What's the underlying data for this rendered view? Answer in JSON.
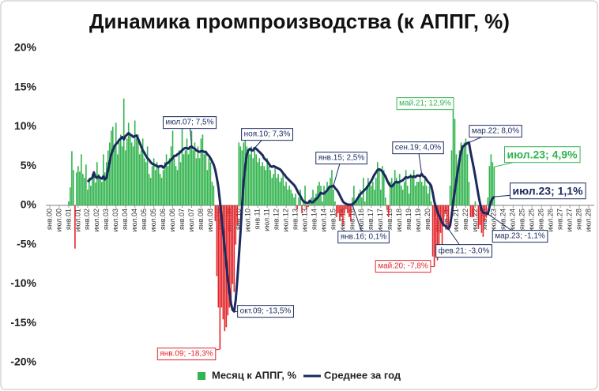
{
  "chart_data": {
    "type": "bar-line",
    "title": "Динамика промпроизводства (к АППГ, %)",
    "x": [
      "2001-01",
      "2001-02",
      "2001-03",
      "2001-04",
      "2001-05",
      "2001-06",
      "2001-07",
      "2001-08",
      "2001-09",
      "2001-10",
      "2001-11",
      "2001-12",
      "2002-01",
      "2002-02",
      "2002-03",
      "2002-04",
      "2002-05",
      "2002-06",
      "2002-07",
      "2002-08",
      "2002-09",
      "2002-10",
      "2002-11",
      "2002-12",
      "2003-01",
      "2003-02",
      "2003-03",
      "2003-04",
      "2003-05",
      "2003-06",
      "2003-07",
      "2003-08",
      "2003-09",
      "2003-10",
      "2003-11",
      "2003-12",
      "2004-01",
      "2004-02",
      "2004-03",
      "2004-04",
      "2004-05",
      "2004-06",
      "2004-07",
      "2004-08",
      "2004-09",
      "2004-10",
      "2004-11",
      "2004-12",
      "2005-01",
      "2005-02",
      "2005-03",
      "2005-04",
      "2005-05",
      "2005-06",
      "2005-07",
      "2005-08",
      "2005-09",
      "2005-10",
      "2005-11",
      "2005-12",
      "2006-01",
      "2006-02",
      "2006-03",
      "2006-04",
      "2006-05",
      "2006-06",
      "2006-07",
      "2006-08",
      "2006-09",
      "2006-10",
      "2006-11",
      "2006-12",
      "2007-01",
      "2007-02",
      "2007-03",
      "2007-04",
      "2007-05",
      "2007-06",
      "2007-07",
      "2007-08",
      "2007-09",
      "2007-10",
      "2007-11",
      "2007-12",
      "2008-01",
      "2008-02",
      "2008-03",
      "2008-04",
      "2008-05",
      "2008-06",
      "2008-07",
      "2008-08",
      "2008-09",
      "2008-10",
      "2008-11",
      "2008-12",
      "2009-01",
      "2009-02",
      "2009-03",
      "2009-04",
      "2009-05",
      "2009-06",
      "2009-07",
      "2009-08",
      "2009-09",
      "2009-10",
      "2009-11",
      "2009-12",
      "2010-01",
      "2010-02",
      "2010-03",
      "2010-04",
      "2010-05",
      "2010-06",
      "2010-07",
      "2010-08",
      "2010-09",
      "2010-10",
      "2010-11",
      "2010-12",
      "2011-01",
      "2011-02",
      "2011-03",
      "2011-04",
      "2011-05",
      "2011-06",
      "2011-07",
      "2011-08",
      "2011-09",
      "2011-10",
      "2011-11",
      "2011-12",
      "2012-01",
      "2012-02",
      "2012-03",
      "2012-04",
      "2012-05",
      "2012-06",
      "2012-07",
      "2012-08",
      "2012-09",
      "2012-10",
      "2012-11",
      "2012-12",
      "2013-01",
      "2013-02",
      "2013-03",
      "2013-04",
      "2013-05",
      "2013-06",
      "2013-07",
      "2013-08",
      "2013-09",
      "2013-10",
      "2013-11",
      "2013-12",
      "2014-01",
      "2014-02",
      "2014-03",
      "2014-04",
      "2014-05",
      "2014-06",
      "2014-07",
      "2014-08",
      "2014-09",
      "2014-10",
      "2014-11",
      "2014-12",
      "2015-01",
      "2015-02",
      "2015-03",
      "2015-04",
      "2015-05",
      "2015-06",
      "2015-07",
      "2015-08",
      "2015-09",
      "2015-10",
      "2015-11",
      "2015-12",
      "2016-01",
      "2016-02",
      "2016-03",
      "2016-04",
      "2016-05",
      "2016-06",
      "2016-07",
      "2016-08",
      "2016-09",
      "2016-10",
      "2016-11",
      "2016-12",
      "2017-01",
      "2017-02",
      "2017-03",
      "2017-04",
      "2017-05",
      "2017-06",
      "2017-07",
      "2017-08",
      "2017-09",
      "2017-10",
      "2017-11",
      "2017-12",
      "2018-01",
      "2018-02",
      "2018-03",
      "2018-04",
      "2018-05",
      "2018-06",
      "2018-07",
      "2018-08",
      "2018-09",
      "2018-10",
      "2018-11",
      "2018-12",
      "2019-01",
      "2019-02",
      "2019-03",
      "2019-04",
      "2019-05",
      "2019-06",
      "2019-07",
      "2019-08",
      "2019-09",
      "2019-10",
      "2019-11",
      "2019-12",
      "2020-01",
      "2020-02",
      "2020-03",
      "2020-04",
      "2020-05",
      "2020-06",
      "2020-07",
      "2020-08",
      "2020-09",
      "2020-10",
      "2020-11",
      "2020-12",
      "2021-01",
      "2021-02",
      "2021-03",
      "2021-04",
      "2021-05",
      "2021-06",
      "2021-07",
      "2021-08",
      "2021-09",
      "2021-10",
      "2021-11",
      "2021-12",
      "2022-01",
      "2022-02",
      "2022-03",
      "2022-04",
      "2022-05",
      "2022-06",
      "2022-07",
      "2022-08",
      "2022-09",
      "2022-10",
      "2022-11",
      "2022-12",
      "2023-01",
      "2023-02",
      "2023-03",
      "2023-04",
      "2023-05",
      "2023-06",
      "2023-07"
    ],
    "series": [
      {
        "name": "Месяц к АППГ, %",
        "type": "bar",
        "color": "#34b450",
        "negative_color": "#e3262b",
        "values": [
          0.5,
          2.3,
          6.9,
          4.5,
          -5.5,
          4.2,
          5.0,
          4.3,
          6.5,
          4.0,
          3.5,
          5.2,
          2.0,
          3.5,
          2.5,
          4.0,
          3.8,
          2.9,
          5.5,
          4.0,
          3.5,
          3.0,
          6.5,
          4.2,
          5.5,
          7.0,
          8.0,
          9.5,
          10.0,
          7.5,
          10.5,
          6.5,
          8.0,
          9.0,
          7.5,
          13.6,
          7.0,
          8.5,
          10.5,
          9.0,
          8.0,
          7.5,
          10.8,
          8.5,
          9.0,
          6.5,
          7.0,
          8.5,
          6.0,
          5.5,
          7.5,
          4.0,
          3.5,
          5.0,
          6.0,
          4.5,
          5.5,
          5.0,
          4.0,
          3.5,
          4.5,
          5.5,
          6.5,
          5.0,
          6.0,
          7.5,
          9.5,
          6.0,
          5.0,
          4.5,
          7.0,
          5.5,
          10.0,
          6.5,
          7.0,
          8.5,
          6.5,
          7.5,
          9.5,
          7.0,
          8.0,
          6.0,
          7.5,
          6.0,
          8.5,
          9.0,
          6.5,
          7.0,
          4.5,
          6.0,
          5.5,
          3.0,
          2.5,
          -2.0,
          -9.0,
          -13.0,
          -18.3,
          -13.0,
          -14.5,
          -16.0,
          -15.5,
          -14.0,
          -13.0,
          -12.0,
          -10.0,
          -11.0,
          -5.0,
          -2.5,
          8.0,
          7.5,
          7.0,
          8.0,
          8.5,
          7.5,
          7.0,
          6.5,
          7.5,
          6.0,
          7.0,
          6.5,
          5.5,
          6.0,
          5.0,
          5.5,
          5.0,
          4.5,
          6.0,
          5.0,
          4.5,
          3.5,
          4.0,
          5.0,
          3.5,
          4.0,
          3.0,
          3.5,
          4.0,
          2.5,
          3.0,
          2.0,
          2.5,
          2.0,
          1.5,
          1.0,
          1.5,
          -0.5,
          1.0,
          2.0,
          -1.0,
          0.5,
          2.5,
          -0.5,
          -0.2,
          0.5,
          1.0,
          2.0,
          1.0,
          1.5,
          2.5,
          3.0,
          2.5,
          0.5,
          2.5,
          1.5,
          3.0,
          2.5,
          3.5,
          4.5,
          2.0,
          0.5,
          -1.5,
          -1.0,
          -2.0,
          -1.5,
          -2.5,
          -1.0,
          -0.5,
          -1.0,
          -1.5,
          -2.0,
          1.0,
          2.5,
          0.5,
          1.0,
          1.5,
          2.0,
          1.0,
          3.5,
          0.5,
          2.5,
          3.5,
          3.0,
          2.5,
          3.0,
          2.0,
          3.5,
          5.5,
          4.5,
          2.0,
          5.0,
          4.5,
          1.0,
          -0.5,
          -1.5,
          3.0,
          3.5,
          2.5,
          4.5,
          3.5,
          3.0,
          4.0,
          2.5,
          2.0,
          3.0,
          4.5,
          2.5,
          1.5,
          4.0,
          3.5,
          4.5,
          2.5,
          3.0,
          3.0,
          3.5,
          3.0,
          2.5,
          3.5,
          2.5,
          1.5,
          2.5,
          0.5,
          -6.5,
          -7.8,
          -6.5,
          -7.0,
          -5.0,
          -3.5,
          -6.0,
          -2.5,
          -1.0,
          -2.5,
          -3.0,
          2.5,
          7.0,
          12.9,
          11.0,
          6.5,
          5.0,
          7.0,
          8.0,
          7.5,
          8.0,
          8.5,
          6.5,
          3.0,
          -1.5,
          -1.5,
          -1.5,
          0.5,
          0.0,
          -3.0,
          -2.5,
          -3.5,
          -4.0,
          -2.0,
          -1.5,
          1.0,
          5.0,
          6.5,
          5.5,
          4.9
        ]
      },
      {
        "name": "Среднее за год",
        "type": "line",
        "color": "#1b2a5e",
        "values": [
          null,
          null,
          null,
          null,
          null,
          null,
          null,
          null,
          null,
          null,
          null,
          null,
          3.0,
          3.2,
          3.4,
          3.5,
          4.2,
          3.6,
          3.5,
          3.7,
          3.5,
          3.4,
          3.7,
          3.3,
          3.5,
          4.5,
          5.5,
          6.5,
          7.0,
          7.5,
          7.8,
          8.0,
          8.3,
          8.5,
          8.7,
          8.4,
          8.8,
          9.0,
          9.2,
          9.0,
          8.9,
          8.7,
          8.8,
          8.9,
          8.5,
          8.0,
          7.5,
          7.0,
          6.7,
          6.3,
          6.0,
          5.8,
          5.5,
          5.3,
          5.2,
          5.1,
          5.0,
          4.9,
          5.0,
          5.0,
          4.8,
          5.0,
          5.3,
          5.4,
          5.6,
          5.8,
          6.0,
          6.3,
          6.3,
          6.5,
          6.6,
          6.8,
          7.0,
          7.2,
          7.3,
          7.3,
          7.2,
          7.4,
          7.5,
          7.3,
          7.2,
          7.0,
          6.9,
          6.8,
          6.9,
          6.9,
          6.8,
          6.8,
          6.5,
          6.3,
          6.0,
          5.6,
          5.2,
          4.5,
          3.5,
          2.3,
          0.5,
          -1.5,
          -3.5,
          -5.5,
          -7.5,
          -9.5,
          -11.0,
          -12.5,
          -13.3,
          -13.5,
          -12.0,
          -9.5,
          -6.5,
          -3.5,
          0.0,
          3.0,
          5.0,
          6.5,
          7.0,
          7.2,
          7.0,
          7.0,
          7.3,
          7.2,
          7.0,
          6.8,
          6.6,
          6.4,
          6.0,
          5.8,
          5.6,
          5.3,
          5.0,
          4.9,
          5.0,
          4.9,
          4.8,
          4.7,
          4.6,
          4.4,
          4.1,
          3.9,
          3.6,
          3.4,
          3.2,
          3.0,
          2.8,
          2.6,
          2.3,
          1.9,
          1.5,
          1.2,
          0.8,
          0.5,
          0.4,
          0.3,
          0.3,
          0.6,
          0.4,
          0.4,
          0.6,
          0.8,
          1.0,
          1.3,
          1.6,
          1.5,
          1.5,
          1.7,
          1.9,
          2.2,
          2.4,
          2.4,
          2.5,
          2.2,
          2.0,
          1.7,
          1.3,
          0.9,
          0.5,
          0.3,
          0.2,
          0.1,
          0.1,
          0.1,
          0.1,
          0.3,
          0.5,
          0.8,
          1.1,
          1.4,
          1.6,
          1.8,
          2.0,
          2.2,
          2.5,
          2.8,
          3.1,
          3.5,
          3.9,
          4.2,
          4.5,
          4.6,
          4.5,
          4.3,
          4.0,
          3.7,
          3.2,
          2.8,
          2.5,
          2.4,
          2.6,
          2.9,
          3.0,
          2.9,
          3.0,
          3.1,
          3.2,
          3.4,
          3.6,
          3.5,
          3.6,
          3.7,
          3.6,
          3.7,
          3.6,
          3.8,
          3.8,
          3.7,
          4.0,
          3.7,
          3.6,
          3.3,
          3.0,
          2.8,
          2.5,
          1.6,
          0.5,
          -0.2,
          -0.8,
          -1.3,
          -1.7,
          -2.2,
          -2.5,
          -2.6,
          -2.8,
          -3.0,
          -2.6,
          -1.3,
          0.5,
          1.8,
          3.2,
          4.5,
          5.8,
          6.8,
          7.5,
          7.6,
          7.8,
          7.9,
          8.0,
          6.8,
          5.8,
          4.8,
          3.7,
          2.5,
          1.3,
          0.3,
          -0.6,
          -0.9,
          -1.0,
          -1.0,
          -1.1,
          -0.2,
          0.5,
          0.9,
          1.1
        ]
      }
    ],
    "xlim": [
      "2000-01",
      "2028-07"
    ],
    "xticks": [
      {
        "value": "2000-01",
        "label": "янв.00"
      },
      {
        "value": "2000-07",
        "label": "июл.00"
      },
      {
        "value": "2001-01",
        "label": "янв.01"
      },
      {
        "value": "2001-07",
        "label": "июл.01"
      },
      {
        "value": "2002-01",
        "label": "янв.02"
      },
      {
        "value": "2002-07",
        "label": "июл.02"
      },
      {
        "value": "2003-01",
        "label": "янв.03"
      },
      {
        "value": "2003-07",
        "label": "июл.03"
      },
      {
        "value": "2004-01",
        "label": "янв.04"
      },
      {
        "value": "2004-07",
        "label": "июл.04"
      },
      {
        "value": "2005-01",
        "label": "янв.05"
      },
      {
        "value": "2005-07",
        "label": "июл.05"
      },
      {
        "value": "2006-01",
        "label": "янв.06"
      },
      {
        "value": "2006-07",
        "label": "июл.06"
      },
      {
        "value": "2007-01",
        "label": "янв.07"
      },
      {
        "value": "2007-07",
        "label": "июл.07"
      },
      {
        "value": "2008-01",
        "label": "янв.08"
      },
      {
        "value": "2008-07",
        "label": "июл.08"
      },
      {
        "value": "2009-01",
        "label": "янв.09"
      },
      {
        "value": "2009-07",
        "label": "июл.09"
      },
      {
        "value": "2010-01",
        "label": "янв.10"
      },
      {
        "value": "2010-07",
        "label": "июл.10"
      },
      {
        "value": "2011-01",
        "label": "янв.11"
      },
      {
        "value": "2011-07",
        "label": "июл.11"
      },
      {
        "value": "2012-01",
        "label": "янв.12"
      },
      {
        "value": "2012-07",
        "label": "июл.12"
      },
      {
        "value": "2013-01",
        "label": "янв.13"
      },
      {
        "value": "2013-07",
        "label": "июл.13"
      },
      {
        "value": "2014-01",
        "label": "янв.14"
      },
      {
        "value": "2014-07",
        "label": "июл.14"
      },
      {
        "value": "2015-01",
        "label": "янв.15"
      },
      {
        "value": "2015-07",
        "label": "июл.15"
      },
      {
        "value": "2016-01",
        "label": "янв.16"
      },
      {
        "value": "2016-07",
        "label": "июл.16"
      },
      {
        "value": "2017-01",
        "label": "янв.17"
      },
      {
        "value": "2017-07",
        "label": "июл.17"
      },
      {
        "value": "2018-01",
        "label": "янв.18"
      },
      {
        "value": "2018-07",
        "label": "июл.18"
      },
      {
        "value": "2019-01",
        "label": "янв.19"
      },
      {
        "value": "2019-07",
        "label": "июл.19"
      },
      {
        "value": "2020-01",
        "label": "янв.20"
      },
      {
        "value": "2020-07",
        "label": "июл.20"
      },
      {
        "value": "2021-01",
        "label": "янв.21"
      },
      {
        "value": "2021-07",
        "label": "июл.21"
      },
      {
        "value": "2022-01",
        "label": "янв.22"
      },
      {
        "value": "2022-07",
        "label": "июл.22"
      },
      {
        "value": "2023-01",
        "label": "янв.23"
      },
      {
        "value": "2023-07",
        "label": "июл.23"
      },
      {
        "value": "2024-01",
        "label": "янв.24"
      },
      {
        "value": "2024-07",
        "label": "июл.24"
      },
      {
        "value": "2025-01",
        "label": "янв.25"
      },
      {
        "value": "2025-07",
        "label": "июл.25"
      },
      {
        "value": "2026-01",
        "label": "янв.26"
      },
      {
        "value": "2026-07",
        "label": "июл.26"
      },
      {
        "value": "2027-01",
        "label": "янв.27"
      },
      {
        "value": "2027-07",
        "label": "июл.27"
      },
      {
        "value": "2028-01",
        "label": "янв.28"
      },
      {
        "value": "2028-07",
        "label": "июл.28"
      }
    ],
    "ylim": [
      -20,
      20
    ],
    "yticks": [
      {
        "value": -20,
        "label": "-20%"
      },
      {
        "value": -15,
        "label": "-15%"
      },
      {
        "value": -10,
        "label": "-10%"
      },
      {
        "value": -5,
        "label": "-5%"
      },
      {
        "value": 0,
        "label": "0%"
      },
      {
        "value": 5,
        "label": "5%"
      },
      {
        "value": 10,
        "label": "10%"
      },
      {
        "value": 15,
        "label": "15%"
      },
      {
        "value": 20,
        "label": "20%"
      }
    ],
    "grid": false,
    "legend": "bottom",
    "annotations": [
      {
        "text": "июл.07; 7,5%",
        "x": "2007-07",
        "y": 7.5,
        "color": "#1b2a5e"
      },
      {
        "text": "янв.09; -18,3%",
        "x": "2009-01",
        "y": -18.3,
        "color": "#e3262b"
      },
      {
        "text": "окт.09; -13,5%",
        "x": "2009-10",
        "y": -13.5,
        "color": "#1b2a5e"
      },
      {
        "text": "ноя.10; 7,3%",
        "x": "2010-11",
        "y": 7.3,
        "color": "#1b2a5e"
      },
      {
        "text": "янв.15; 2,5%",
        "x": "2015-01",
        "y": 2.5,
        "color": "#1b2a5e"
      },
      {
        "text": "янв.16; 0,1%",
        "x": "2016-01",
        "y": 0.1,
        "color": "#1b2a5e"
      },
      {
        "text": "сен.19; 4,0%",
        "x": "2019-09",
        "y": 4.0,
        "color": "#1b2a5e"
      },
      {
        "text": "май.20; -7,8%",
        "x": "2020-05",
        "y": -7.8,
        "color": "#e3262b"
      },
      {
        "text": "фев.21; -3,0%",
        "x": "2021-02",
        "y": -3.0,
        "color": "#1b2a5e"
      },
      {
        "text": "май.21; 12,9%",
        "x": "2021-05",
        "y": 12.9,
        "color": "#34b450"
      },
      {
        "text": "мар.22; 8,0%",
        "x": "2022-03",
        "y": 8.0,
        "color": "#1b2a5e"
      },
      {
        "text": "мар.23; -1,1%",
        "x": "2023-03",
        "y": -1.1,
        "color": "#1b2a5e"
      },
      {
        "text": "июл.23; 4,9%",
        "x": "2023-07",
        "y": 4.9,
        "color": "#34b450"
      },
      {
        "text": "июл.23; 1,1%",
        "x": "2023-07",
        "y": 1.1,
        "color": "#1b2a5e"
      }
    ]
  }
}
